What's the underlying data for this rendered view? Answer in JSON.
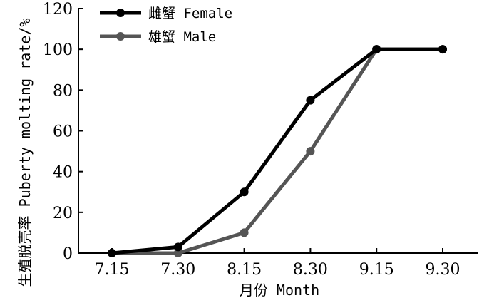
{
  "chart_data": {
    "type": "line",
    "categories": [
      "7.15",
      "7.30",
      "8.15",
      "8.30",
      "9.15",
      "9.30"
    ],
    "series": [
      {
        "name": "雌蟹 Female",
        "values": [
          0,
          3,
          30,
          75,
          100,
          100
        ],
        "color": "#000000"
      },
      {
        "name": "雄蟹 Male",
        "values": [
          0,
          0,
          10,
          50,
          100,
          100
        ],
        "color": "#555555"
      }
    ],
    "title": "",
    "xlabel": "月份 Month",
    "ylabel": "生殖脱壳率 Puberty molting rate/%",
    "ylim": [
      0,
      120
    ],
    "yticks": [
      0,
      20,
      40,
      60,
      80,
      100,
      120
    ],
    "grid": false,
    "legend_position": "top-left"
  }
}
